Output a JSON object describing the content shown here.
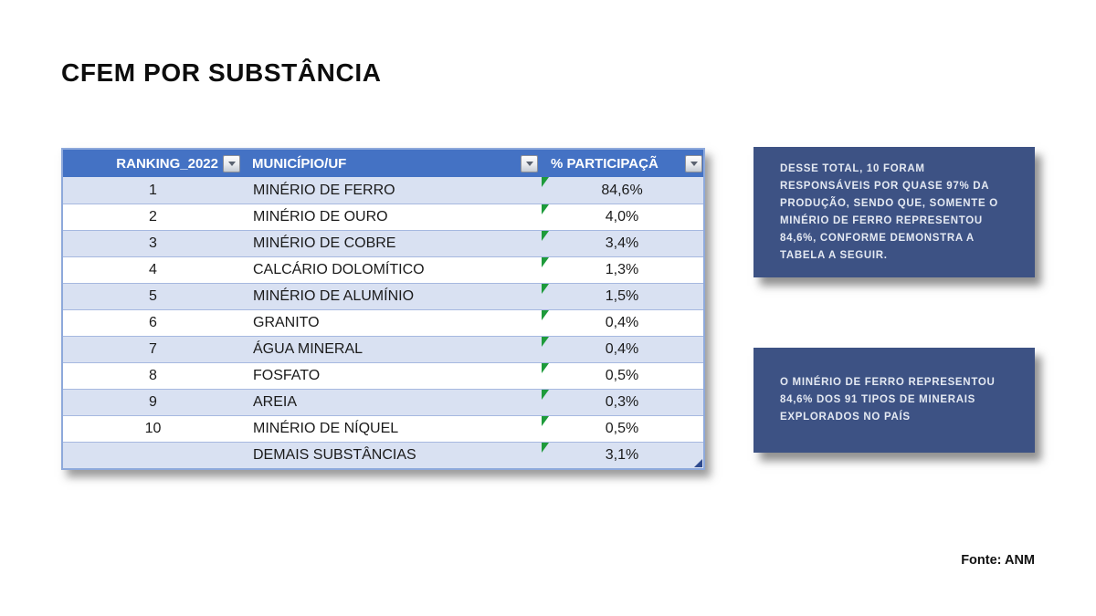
{
  "page": {
    "title": "CFEM POR SUBSTÂNCIA",
    "source": "Fonte: ANM"
  },
  "table": {
    "columns": [
      {
        "id": "ranking",
        "label": "RANKING_2022",
        "filter_icon": "filter-dropdown-icon"
      },
      {
        "id": "municipio_uf",
        "label": "MUNICÍPIO/UF",
        "filter_icon": "filter-dropdown-icon"
      },
      {
        "id": "participacao",
        "label": "% PARTICIPAÇÃ",
        "filter_icon": "filter-dropdown-icon"
      }
    ],
    "rows": [
      {
        "rank": "1",
        "substance": "MINÉRIO DE FERRO",
        "share": "84,6%"
      },
      {
        "rank": "2",
        "substance": "MINÉRIO DE OURO",
        "share": "4,0%"
      },
      {
        "rank": "3",
        "substance": "MINÉRIO DE COBRE",
        "share": "3,4%"
      },
      {
        "rank": "4",
        "substance": "CALCÁRIO DOLOMÍTICO",
        "share": "1,3%"
      },
      {
        "rank": "5",
        "substance": "MINÉRIO DE ALUMÍNIO",
        "share": "1,5%"
      },
      {
        "rank": "6",
        "substance": "GRANITO",
        "share": "0,4%"
      },
      {
        "rank": "7",
        "substance": "ÁGUA MINERAL",
        "share": "0,4%"
      },
      {
        "rank": "8",
        "substance": "FOSFATO",
        "share": "0,5%"
      },
      {
        "rank": "9",
        "substance": "AREIA",
        "share": "0,3%"
      },
      {
        "rank": "10",
        "substance": "MINÉRIO DE NÍQUEL",
        "share": "0,5%"
      },
      {
        "rank": "",
        "substance": "DEMAIS SUBSTÂNCIAS",
        "share": "3,1%"
      }
    ],
    "comment_indicator": "green-corner-triangle-icon",
    "resize_handle": "table-resize-grip-icon"
  },
  "notes": [
    {
      "text": "DESSE TOTAL, 10 FORAM RESPONSÁVEIS POR QUASE 97% DA PRODUÇÃO, SENDO QUE, SOMENTE O MINÉRIO DE FERRO REPRESENTOU 84,6%, CONFORME DEMONSTRA A TABELA A SEGUIR."
    },
    {
      "text": "O MINÉRIO DE FERRO REPRESENTOU 84,6% DOS 91 TIPOS DE MINERAIS EXPLORADOS NO PAÍS"
    }
  ],
  "colors": {
    "header_bg": "#4472C4",
    "header_text": "#FFFFFF",
    "band_row_bg": "#D9E1F2",
    "plain_row_bg": "#FFFFFF",
    "table_border": "#8EA9DB",
    "row_separator": "#A6B8E0",
    "comment_green": "#1E9B3B",
    "grip_navy": "#2F4B8F",
    "note_box_bg": "#3D5284",
    "note_text": "#E4E9F2",
    "title_text": "#0D0D0D"
  }
}
